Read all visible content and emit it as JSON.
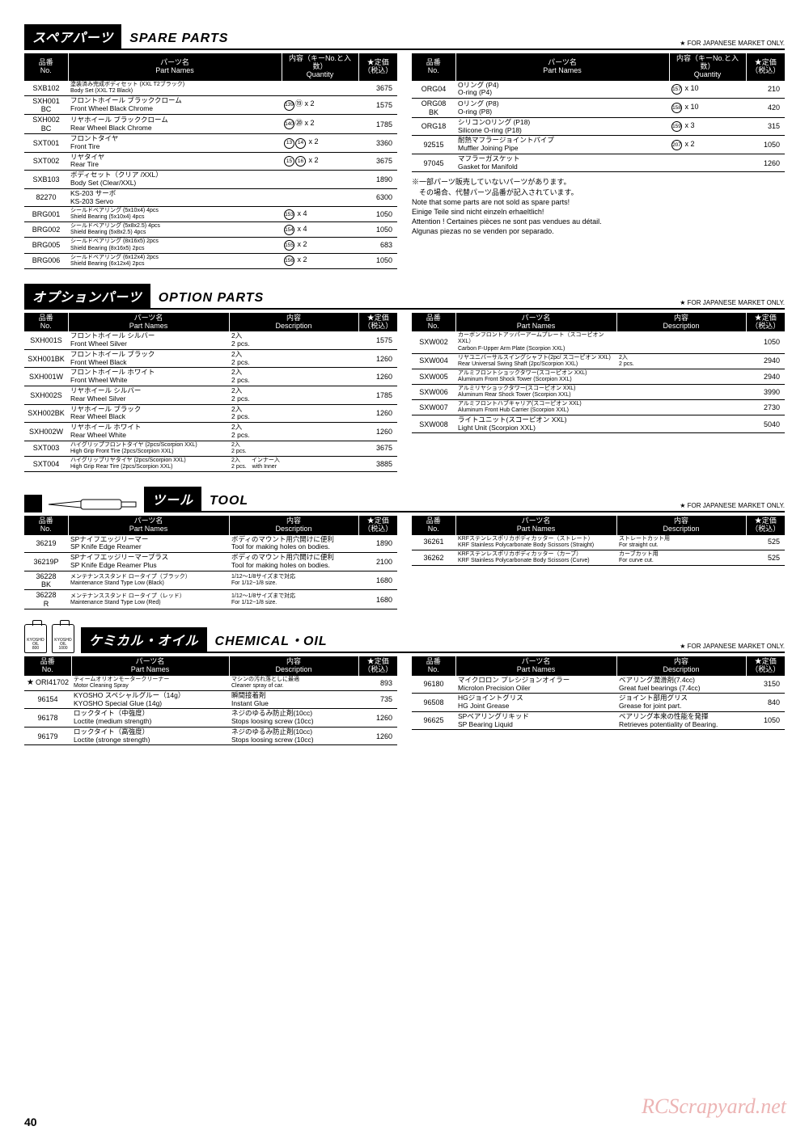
{
  "common": {
    "jp_market_note": "★ FOR JAPANESE MARKET ONLY.",
    "page_number": "40",
    "watermark": "RCScrapyard.net"
  },
  "headers": {
    "no_jp": "品番",
    "no_en": "No.",
    "name_jp": "パーツ名",
    "name_en": "Part Names",
    "qty_jp": "内容（キーNo.と入数）",
    "qty_en": "Quantity",
    "desc_jp": "内容",
    "desc_en": "Description",
    "price_jp": "★定価",
    "price_en": "（税込）"
  },
  "spare": {
    "title_jp": "スペアパーツ",
    "title_en": "SPARE  PARTS",
    "notes_jp1": "※一部パーツ販売していないパーツがあります。",
    "notes_jp2": "　その場合、代替パーツ品番が記入されています。",
    "notes_en1": "Note that some parts are not sold as spare parts!",
    "notes_de": "Einige Teile sind nicht einzeln erhaeltlich!",
    "notes_fr": "Attention ! Certaines pièces ne sont pas vendues au détail.",
    "notes_es": "Algunas piezas no se venden por separado.",
    "left": [
      {
        "no": "SXB102",
        "jp": "塗装済み完成ボディセット (XXL T2ブラック)",
        "en": "Body Set (XXL T2 Black)",
        "qty": "",
        "price": "3675",
        "sm": true
      },
      {
        "no": "SXH001\nBC",
        "jp": "フロントホイール ブラッククローム",
        "en": "Front Wheel Black Chrome",
        "qty": "⑲ x 2",
        "circ": [
          "139"
        ],
        "price": "1575"
      },
      {
        "no": "SXH002\nBC",
        "jp": "リヤホイール ブラッククローム",
        "en": "Rear Wheel Black Chrome",
        "qty": "⑳ x 2",
        "circ": [
          "140"
        ],
        "price": "1785"
      },
      {
        "no": "SXT001",
        "jp": "フロントタイヤ",
        "en": "Front Tire",
        "qty": "",
        "circ": [
          "13",
          "14"
        ],
        "qsuffix": " x 2",
        "price": "3360"
      },
      {
        "no": "SXT002",
        "jp": "リヤタイヤ",
        "en": "Rear Tire",
        "qty": "",
        "circ": [
          "15",
          "16"
        ],
        "qsuffix": " x 2",
        "price": "3675"
      },
      {
        "no": "SXB103",
        "jp": "ボディセット（クリア /XXL）",
        "en": "Body Set (Clear/XXL)",
        "qty": "",
        "price": "1890"
      },
      {
        "no": "82270",
        "jp": "KS-203 サーボ",
        "en": "KS-203 Servo",
        "qty": "",
        "price": "6300"
      },
      {
        "no": "BRG001",
        "jp": "シールドベアリング (5x10x4) 4pcs",
        "en": "Shield Bearing (5x10x4) 4pcs",
        "circ": [
          "153"
        ],
        "qsuffix": " x 4",
        "price": "1050",
        "sm": true
      },
      {
        "no": "BRG002",
        "jp": "シールドベアリング (5x8x2.5) 4pcs",
        "en": "Shield Bearing (5x8x2.5) 4pcs",
        "circ": [
          "154"
        ],
        "qsuffix": " x 4",
        "price": "1050",
        "sm": true
      },
      {
        "no": "BRG005",
        "jp": "シールドベアリング (8x16x5) 2pcs",
        "en": "Shield Bearing (8x16x5) 2pcs",
        "circ": [
          "155"
        ],
        "qsuffix": " x 2",
        "price": "683",
        "sm": true
      },
      {
        "no": "BRG006",
        "jp": "シールドベアリング (6x12x4) 2pcs",
        "en": "Shield Bearing (6x12x4) 2pcs",
        "circ": [
          "156"
        ],
        "qsuffix": " x 2",
        "price": "1050",
        "sm": true
      }
    ],
    "right": [
      {
        "no": "ORG04",
        "jp": "Oリング (P4)",
        "en": "O-ring (P4)",
        "circ": [
          "157"
        ],
        "qsuffix": " x 10",
        "price": "210"
      },
      {
        "no": "ORG08\nBK",
        "jp": "Oリング (P8)",
        "en": "O-ring (P8)",
        "circ": [
          "158"
        ],
        "qsuffix": " x 10",
        "price": "420"
      },
      {
        "no": "ORG18",
        "jp": "シリコンOリング (P18)",
        "en": "Silicone O-ring (P18)",
        "circ": [
          "159"
        ],
        "qsuffix": " x 3",
        "price": "315"
      },
      {
        "no": "92515",
        "jp": "耐熱マフラージョイントパイプ",
        "en": "Muffler Joining Pipe",
        "circ": [
          "207"
        ],
        "qsuffix": " x 2",
        "price": "1050"
      },
      {
        "no": "97045",
        "jp": "マフラーガスケット",
        "en": "Gasket for Manifold",
        "qty": "",
        "price": "1260"
      }
    ]
  },
  "option": {
    "title_jp": "オプションパーツ",
    "title_en": "OPTION  PARTS",
    "left": [
      {
        "no": "SXH001S",
        "jp": "フロントホイール シルバー",
        "en": "Front Wheel Silver",
        "djp": "2入",
        "den": "2 pcs.",
        "price": "1575"
      },
      {
        "no": "SXH001BK",
        "jp": "フロントホイール ブラック",
        "en": "Front Wheel Black",
        "djp": "2入",
        "den": "2 pcs.",
        "price": "1260"
      },
      {
        "no": "SXH001W",
        "jp": "フロントホイール ホワイト",
        "en": "Front Wheel White",
        "djp": "2入",
        "den": "2 pcs.",
        "price": "1260"
      },
      {
        "no": "SXH002S",
        "jp": "リヤホイール シルバー",
        "en": "Rear Wheel Silver",
        "djp": "2入",
        "den": "2 pcs.",
        "price": "1785"
      },
      {
        "no": "SXH002BK",
        "jp": "リヤホイール ブラック",
        "en": "Rear Wheel Black",
        "djp": "2入",
        "den": "2 pcs.",
        "price": "1260"
      },
      {
        "no": "SXH002W",
        "jp": "リヤホイール ホワイト",
        "en": "Rear Wheel White",
        "djp": "2入",
        "den": "2 pcs.",
        "price": "1260"
      },
      {
        "no": "SXT003",
        "jp": "ハイグリップフロントタイヤ (2pcs/Scorpion XXL)",
        "en": "High Grip Front Tire (2pcs/Scorpion XXL)",
        "djp": "2入",
        "den": "2 pcs.",
        "price": "3675",
        "sm": true
      },
      {
        "no": "SXT004",
        "jp": "ハイグリップリヤタイヤ (2pcs/Scorpion XXL)",
        "en": "High Grip Rear Tire (2pcs/Scorpion XXL)",
        "djp": "2入　　インナー入",
        "den": "2 pcs.　with Inner",
        "price": "3885",
        "sm": true
      }
    ],
    "right": [
      {
        "no": "SXW002",
        "jp": "カーボンフロントアッパーアームプレート（スコーピオン XXL）",
        "en": "Carbon F-Upper Arm Plate (Scorpion XXL)",
        "djp": "",
        "den": "",
        "price": "1050",
        "sm": true
      },
      {
        "no": "SXW004",
        "jp": "リヤユニバーサルスイングシャフト(2pc/ スコーピオン XXL)",
        "en": "Rear Universal Swing Shaft (2pc/Scorpion XXL)",
        "djp": "2入",
        "den": "2 pcs.",
        "price": "2940",
        "sm": true
      },
      {
        "no": "SXW005",
        "jp": "アルミフロントショックタワー(スコーピオン XXL)",
        "en": "Aluminum Front Shock Tower (Scorpion XXL)",
        "djp": "",
        "den": "",
        "price": "2940",
        "sm": true
      },
      {
        "no": "SXW006",
        "jp": "アルミリヤショックタワー(スコーピオン XXL)",
        "en": "Aluminum Rear Shock Tower (Scorpion XXL)",
        "djp": "",
        "den": "",
        "price": "3990",
        "sm": true
      },
      {
        "no": "SXW007",
        "jp": "アルミフロントハブキャリア(スコーピオン XXL)",
        "en": "Aluminum Front Hub Carrier (Scorpion XXL)",
        "djp": "",
        "den": "",
        "price": "2730",
        "sm": true
      },
      {
        "no": "SXW008",
        "jp": "ライトユニット(スコーピオン XXL)",
        "en": "Light Unit (Scorpion XXL)",
        "djp": "",
        "den": "",
        "price": "5040"
      }
    ]
  },
  "tool": {
    "title_jp": "ツール",
    "title_en": "TOOL",
    "left": [
      {
        "no": "36219",
        "jp": "SPナイフエッジリーマー",
        "en": "SP Knife Edge Reamer",
        "djp": "ボディのマウント用穴開けに便利",
        "den": "Tool for making holes on bodies.",
        "price": "1890"
      },
      {
        "no": "36219P",
        "jp": "SPナイフエッジリーマープラス",
        "en": "SP Knife Edge Reamer Plus",
        "djp": "ボディのマウント用穴開けに便利",
        "den": "Tool for making holes on bodies.",
        "price": "2100"
      },
      {
        "no": "36228\nBK",
        "jp": "メンテナンススタンド ロータイプ（ブラック）",
        "en": "Maintenance Stand  Type Low (Black)",
        "djp": "1/12～1/8サイズまで対応",
        "den": "For 1/12~1/8 size.",
        "price": "1680",
        "sm": true
      },
      {
        "no": "36228\nR",
        "jp": "メンテナンススタンド ロータイプ（レッド）",
        "en": "Maintenance Stand  Type Low (Red)",
        "djp": "1/12～1/8サイズまで対応",
        "den": "For 1/12~1/8 size.",
        "price": "1680",
        "sm": true
      }
    ],
    "right": [
      {
        "no": "36261",
        "jp": "KRFステンレスポリカボディカッター（ストレート）",
        "en": "KRF Stainless Polycarbonate Body Scissors (Straight)",
        "djp": "ストレートカット用",
        "den": "For straight cut.",
        "price": "525",
        "sm": true
      },
      {
        "no": "36262",
        "jp": "KRFステンレスポリカボディカッター（カーブ）",
        "en": "KRF Stainless Polycarbonate Body Scissors (Curve)",
        "djp": "カーブカット用",
        "den": "For curve cut.",
        "price": "525",
        "sm": true
      }
    ]
  },
  "chemical": {
    "title_jp": "ケミカル・オイル",
    "title_en": "CHEMICAL・OIL",
    "oil_labels": [
      "KYOSHO\nOIL\n800",
      "KYOSHO\nOIL\n1000"
    ],
    "left": [
      {
        "no": "ORI41702",
        "jp": "ティームオリオンモータークリーナー",
        "en": "Motor Cleaning Spray",
        "djp": "マシンの汚れ落としに最適",
        "den": "Cleaner spray of car.",
        "price": "893",
        "star": true,
        "sm": true
      },
      {
        "no": "96154",
        "jp": "KYOSHO スペシャルグルー（14g）",
        "en": "KYOSHO Special Glue (14g)",
        "djp": "瞬間接着剤",
        "den": "Instant Glue",
        "price": "735"
      },
      {
        "no": "96178",
        "jp": "ロックタイト（中強度）",
        "en": "Loctite (medium strength)",
        "djp": "ネジのゆるみ防止剤(10cc)",
        "den": "Stops loosing screw (10cc)",
        "price": "1260"
      },
      {
        "no": "96179",
        "jp": "ロックタイト（高強度）",
        "en": "Loctite (stronge strength)",
        "djp": "ネジのゆるみ防止剤(10cc)",
        "den": "Stops loosing screw (10cc)",
        "price": "1260"
      }
    ],
    "right": [
      {
        "no": "96180",
        "jp": "マイクロロン プレシジョンオイラー",
        "en": "Microlon Precision Oiler",
        "djp": "ベアリング潤滑剤(7.4cc)",
        "den": "Great fuel bearings (7.4cc)",
        "price": "3150"
      },
      {
        "no": "96508",
        "jp": "HGジョイントグリス",
        "en": "HG Joint Grease",
        "djp": "ジョイント部用グリス",
        "den": "Grease for joint part.",
        "price": "840"
      },
      {
        "no": "96625",
        "jp": "SPベアリングリキッド",
        "en": "SP Bearing Liquid",
        "djp": "ベアリング本来の性能を発揮",
        "den": "Retrieves potentiality of Bearing.",
        "price": "1050"
      }
    ]
  }
}
